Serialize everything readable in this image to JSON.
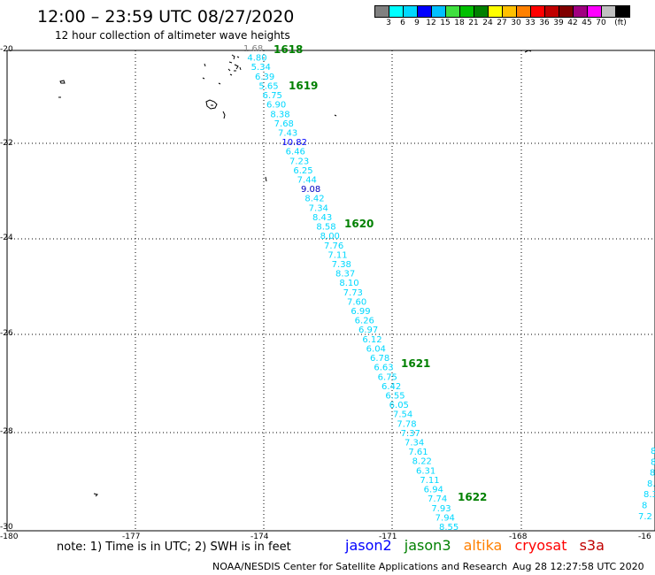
{
  "header": {
    "title": "12:00 – 23:59 UTC 08/27/2020",
    "subtitle": "12 hour collection of altimeter wave heights"
  },
  "legend": {
    "colors": [
      "#808080",
      "#00ffff",
      "#00d8ff",
      "#0000ff",
      "#00c0ff",
      "#40e040",
      "#00c000",
      "#008000",
      "#ffff00",
      "#ffc000",
      "#ff8000",
      "#ff0000",
      "#c00000",
      "#800000",
      "#a00080",
      "#ff00ff",
      "#c0c0c0",
      "#000000"
    ],
    "labels": [
      "3",
      "6",
      "9",
      "12",
      "15",
      "18",
      "21",
      "24",
      "27",
      "30",
      "33",
      "36",
      "39",
      "42",
      "45",
      "70",
      "(ft)"
    ]
  },
  "map_axes": {
    "lon_ticks": [
      "-180",
      "-177",
      "-174",
      "-171",
      "-168",
      "-16"
    ],
    "lat_ticks": [
      "-20",
      "-22",
      "-24",
      "-26",
      "-28",
      "-30"
    ]
  },
  "track": {
    "pass_labels": [
      "1618",
      "1619",
      "1620",
      "1621",
      "1622"
    ],
    "swh_values": [
      "1.68",
      "4.80",
      "5.34",
      "6.39",
      "5.65",
      "6.75",
      "6.90",
      "8.38",
      "7.68",
      "7.43",
      "10.82",
      "6.46",
      "7.23",
      "6.25",
      "7.44",
      "9.08",
      "8.42",
      "7.34",
      "8.43",
      "8.58",
      "8.00",
      "7.76",
      "7.11",
      "7.38",
      "8.37",
      "8.10",
      "7.73",
      "7.60",
      "6.99",
      "6.26",
      "6.97",
      "6.12",
      "6.04",
      "6.78",
      "6.63",
      "6.75",
      "6.42",
      "6.55",
      "6.05",
      "7.54",
      "7.78",
      "7.37",
      "7.34",
      "7.61",
      "8.22",
      "6.31",
      "7.11",
      "6.94",
      "7.74",
      "7.93",
      "7.94",
      "8.55"
    ],
    "value_colors": [
      "#808080",
      "#00d8ff",
      "#00d8ff",
      "#00d8ff",
      "#00d8ff",
      "#00d8ff",
      "#00d8ff",
      "#00d8ff",
      "#00d8ff",
      "#00d8ff",
      "#0000ff",
      "#00d8ff",
      "#00d8ff",
      "#00d8ff",
      "#00d8ff",
      "#0000c0",
      "#00d8ff",
      "#00d8ff",
      "#00d8ff",
      "#00d8ff",
      "#00d8ff",
      "#00d8ff",
      "#00d8ff",
      "#00d8ff",
      "#00d8ff",
      "#00d8ff",
      "#00d8ff",
      "#00d8ff",
      "#00d8ff",
      "#00d8ff",
      "#00d8ff",
      "#00d8ff",
      "#00d8ff",
      "#00d8ff",
      "#00d8ff",
      "#00d8ff",
      "#00d8ff",
      "#00d8ff",
      "#00d8ff",
      "#00d8ff",
      "#00d8ff",
      "#00d8ff",
      "#00d8ff",
      "#00d8ff",
      "#00d8ff",
      "#00d8ff",
      "#00d8ff",
      "#00d8ff",
      "#00d8ff",
      "#00d8ff",
      "#00d8ff",
      "#00d8ff"
    ],
    "right_edge_values": [
      "8",
      "8",
      "8",
      "8.",
      "8.3",
      "8",
      "7.2"
    ],
    "pass_label_color": "#008000"
  },
  "footer": {
    "note": "note:  1) Time is in UTC;  2) SWH is in feet",
    "satellites": [
      {
        "name": "jason2",
        "color": "#0000ff"
      },
      {
        "name": "jason3",
        "color": "#008000"
      },
      {
        "name": "altika",
        "color": "#ff8000"
      },
      {
        "name": "cryosat",
        "color": "#ff0000"
      },
      {
        "name": "s3a",
        "color": "#c00000"
      }
    ],
    "credit": "NOAA/NESDIS Center for Satellite Applications and Research",
    "timestamp": "Aug 28 12:27:58 UTC 2020"
  }
}
